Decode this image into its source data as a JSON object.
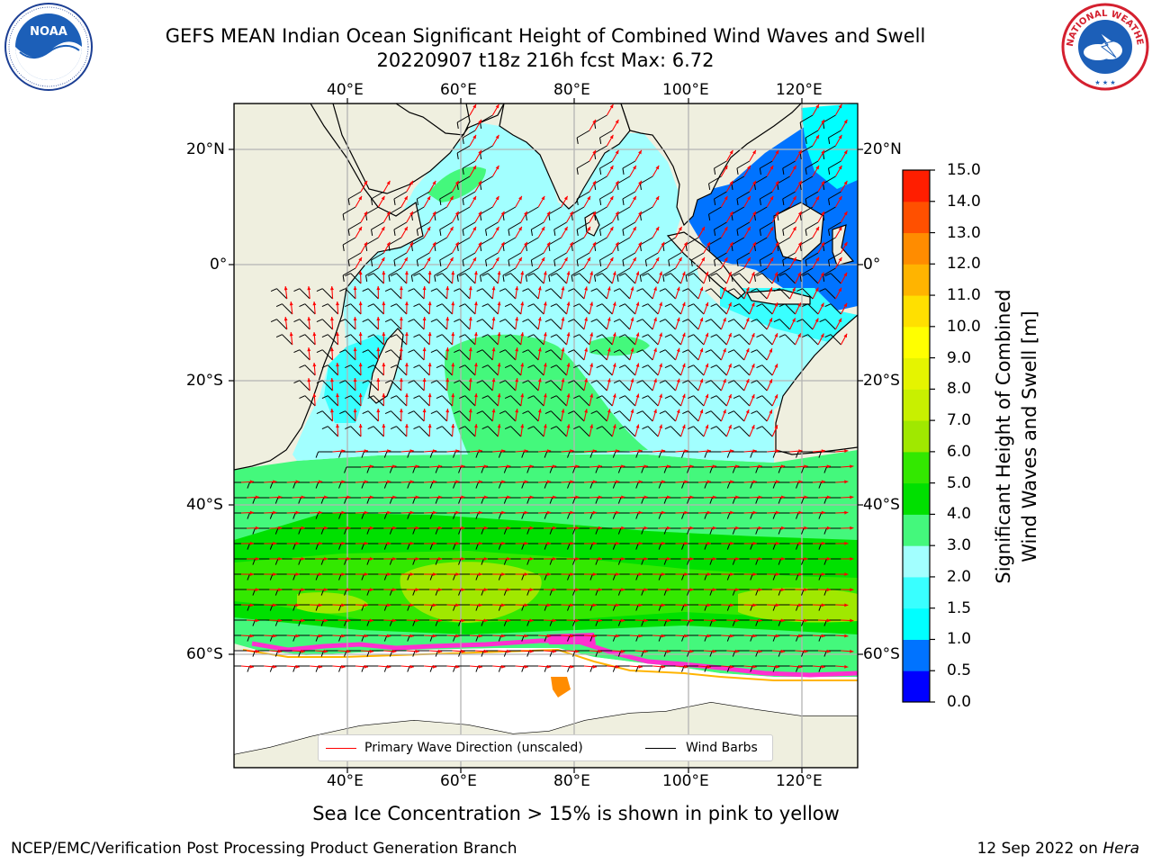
{
  "title": {
    "line1": "GEFS MEAN Indian Ocean Significant Height of Combined Wind Waves and Swell",
    "line2": "20220907 t18z 216h fcst   Max: 6.72"
  },
  "logos": {
    "left": {
      "name": "NOAA",
      "text": "NOAA"
    },
    "right": {
      "name": "National Weather Service",
      "text": "NATIONAL WEATHER SERVICE"
    }
  },
  "map": {
    "lon_ticks": [
      "40°E",
      "60°E",
      "80°E",
      "100°E",
      "120°E"
    ],
    "lat_ticks": [
      "20°N",
      "0°",
      "20°S",
      "40°S",
      "60°S"
    ],
    "colors": {
      "land": "#efefdf",
      "ice": "#ffffff",
      "grid": "#b4b4b4",
      "arrow": "#ff0000",
      "barb": "#000000"
    }
  },
  "colorbar": {
    "title_line1": "Significant Height of Combined",
    "title_line2": "Wind Waves and Swell [m]",
    "ticks": [
      "0.0",
      "0.5",
      "1.0",
      "1.5",
      "2.0",
      "3.0",
      "4.0",
      "5.0",
      "6.0",
      "7.0",
      "8.0",
      "9.0",
      "10.0",
      "11.0",
      "12.0",
      "13.0",
      "14.0",
      "15.0"
    ],
    "colors": [
      "#0000ff",
      "#0073ff",
      "#00ffff",
      "#39ffff",
      "#a2ffff",
      "#44f87c",
      "#00e000",
      "#33e800",
      "#a0e800",
      "#c8f000",
      "#e5f400",
      "#ffff00",
      "#ffe000",
      "#ffb400",
      "#ff8c00",
      "#ff5000",
      "#ff1e00"
    ]
  },
  "legend": {
    "wave_label": "Primary Wave Direction (unscaled)",
    "barb_label": "Wind Barbs"
  },
  "footnote": "Sea Ice Concentration > 15% is shown in pink to yellow",
  "credit_left": "NCEP/EMC/Verification Post Processing Product Generation Branch",
  "credit_right": {
    "date": "12 Sep 2022 on ",
    "host": "Hera"
  }
}
